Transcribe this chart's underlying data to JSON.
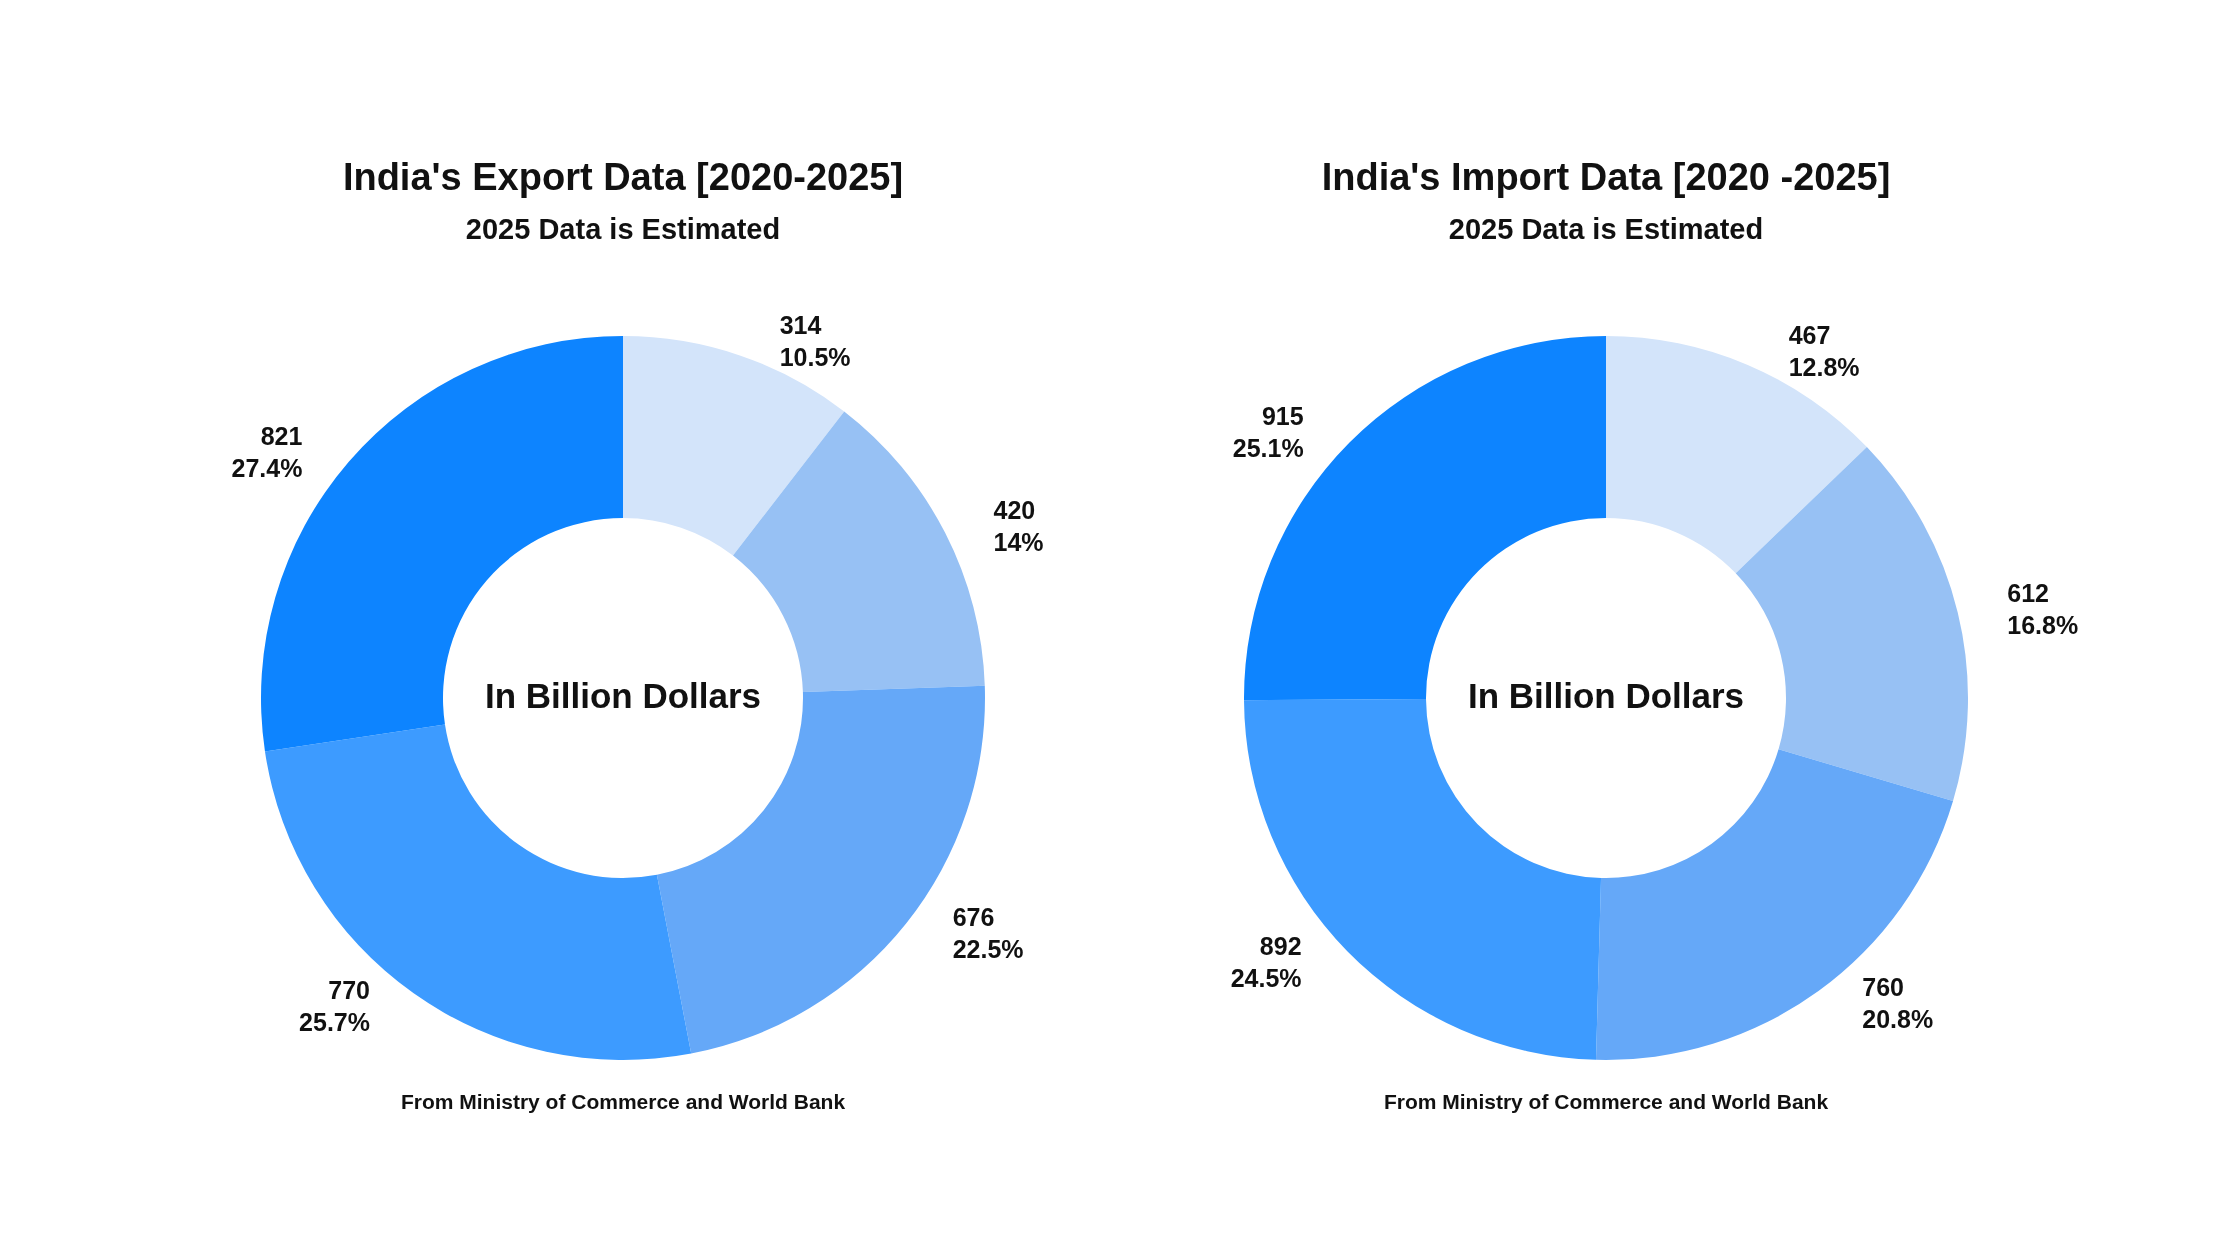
{
  "chart_data": [
    {
      "type": "donut",
      "title": "India's Export Data [2020-2025]",
      "subtitle": "2025 Data is Estimated",
      "categories": [
        null,
        null,
        null,
        null,
        null
      ],
      "values": [
        314,
        420,
        676,
        770,
        821
      ],
      "colors": [
        "#d3e4fa",
        "#97c1f4",
        "#65a8f8",
        "#3d9bff",
        "#0d84ff"
      ],
      "value_labels": [
        "314\n10.5%",
        "420\n14%",
        "676\n22.5%",
        "770\n25.7%",
        "821\n27.4%"
      ],
      "annotations": [
        "In Billion Dollars",
        "From Ministry of Commerce and World Bank"
      ]
    },
    {
      "type": "donut",
      "title": "India's Import Data [2020 -2025]",
      "subtitle": "2025 Data is Estimated",
      "categories": [
        null,
        null,
        null,
        null,
        null
      ],
      "values": [
        467,
        612,
        760,
        892,
        915
      ],
      "colors": [
        "#d3e4fa",
        "#97c1f4",
        "#65a8f8",
        "#3d9bff",
        "#0d84ff"
      ],
      "value_labels": [
        "467\n12.8%",
        "612\n16.8%",
        "760\n20.8%",
        "892\n24.5%",
        "915\n25.1%"
      ],
      "annotations": [
        "In Billion Dollars",
        "From Ministry of Commerce and World Bank"
      ]
    }
  ]
}
